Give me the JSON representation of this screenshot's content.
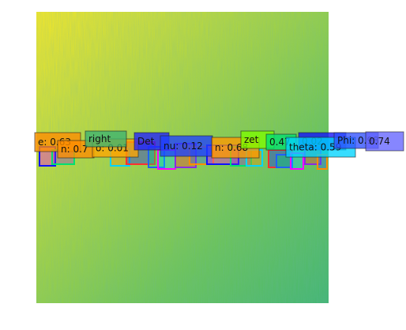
{
  "chart_data": {
    "type": "heatmap",
    "title": "",
    "xlabel": "",
    "ylabel": "",
    "axes_visible": false,
    "colormap": "viridis",
    "colormap_range_shown": [
      "#fde725",
      "#5ec962",
      "#21918c"
    ],
    "background_trend": "yellow at top-left, shifting to teal-green toward bottom-right",
    "annotations": [
      {
        "text": "e: 0.63",
        "box_color": "#ff8c00"
      },
      {
        "text": "n: 0.7",
        "box_color": "#ff8c00"
      },
      {
        "text": "o: 0.01",
        "box_color": "#ffa500"
      },
      {
        "text": "right",
        "box_color": "#3cb371"
      },
      {
        "text": "Det",
        "box_color": "#2020ff"
      },
      {
        "text": "nu: 0.12",
        "box_color": "#1e40ff"
      },
      {
        "text": "n: 0.68",
        "box_color": "#ff9900"
      },
      {
        "text": "zet",
        "box_color": "#7cfc00"
      },
      {
        "text": "0.47",
        "box_color": "#00e070"
      },
      {
        "text": "0.02",
        "box_color": "#1010ff"
      },
      {
        "text": "theta: 0.59",
        "box_color": "#00d4ff"
      },
      {
        "text": "Phi: 0.98",
        "box_color": "#3050ff"
      },
      {
        "text": "0.74",
        "box_color": "#6464ff"
      }
    ]
  }
}
